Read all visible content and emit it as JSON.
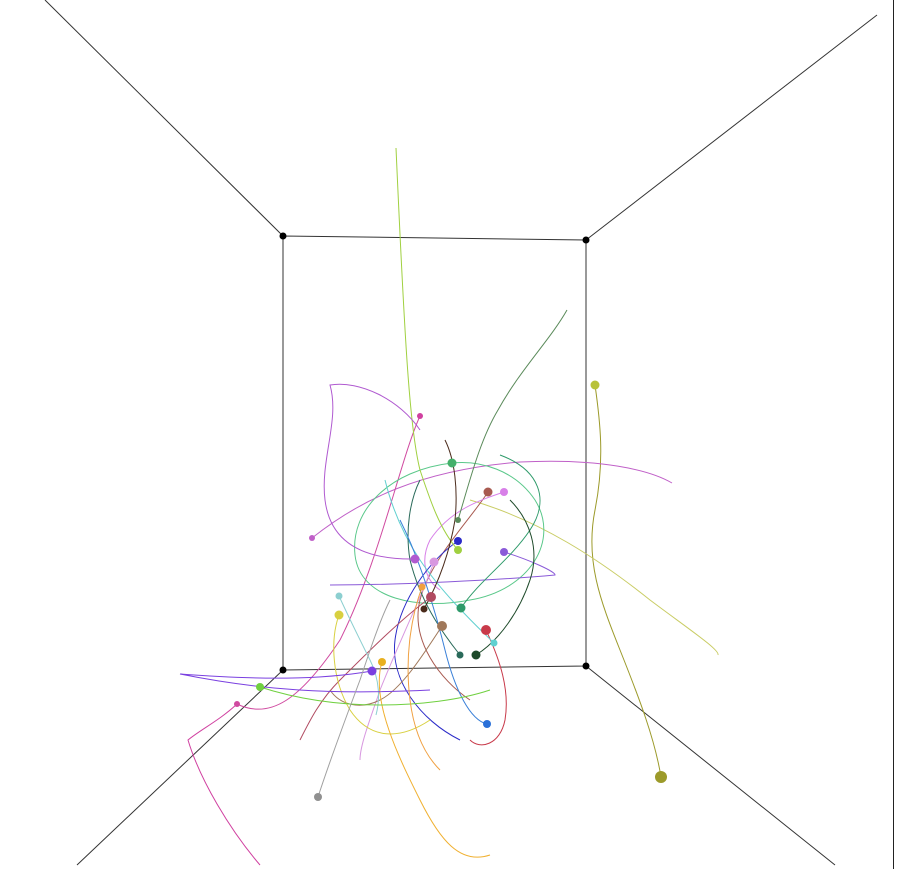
{
  "scene": {
    "type": "3d-particle-trajectory-simulation",
    "background": "#ffffff",
    "box_edge_color": "#333333",
    "corner_color": "#000000"
  },
  "particles": [
    {
      "color": "#9c9a2a",
      "trail": "#9c9a2a"
    },
    {
      "color": "#b8c23a",
      "trail": "#c9cc64"
    },
    {
      "color": "#c060c8",
      "trail": "#c060c8"
    },
    {
      "color": "#d04aa0",
      "trail": "#d04aa0"
    },
    {
      "color": "#44b06a",
      "trail": "#5ac88a"
    },
    {
      "color": "#a85a50",
      "trail": "#a85a50"
    },
    {
      "color": "#d880e8",
      "trail": "#d880e8"
    },
    {
      "color": "#2a2ac8",
      "trail": "#2a2ac8"
    },
    {
      "color": "#8a5ad8",
      "trail": "#8a5ad8"
    },
    {
      "color": "#a0d040",
      "trail": "#a0d040"
    },
    {
      "color": "#5a8a5a",
      "trail": "#5a8a5a"
    },
    {
      "color": "#d898e0",
      "trail": "#d898e0"
    },
    {
      "color": "#b04a60",
      "trail": "#b04a60"
    },
    {
      "color": "#2e9a6a",
      "trail": "#2e9a6a"
    },
    {
      "color": "#a0785a",
      "trail": "#a0785a"
    },
    {
      "color": "#c83a4a",
      "trail": "#c83a4a"
    },
    {
      "color": "#60d0d0",
      "trail": "#60d0d0"
    },
    {
      "color": "#2a6a5a",
      "trail": "#2a6a5a"
    },
    {
      "color": "#1e4a2a",
      "trail": "#1e4a2a"
    },
    {
      "color": "#2a70d8",
      "trail": "#3a80d8"
    },
    {
      "color": "#8ccfd0",
      "trail": "#8ccfd0"
    },
    {
      "color": "#d8d040",
      "trail": "#d8d040"
    },
    {
      "color": "#e8b020",
      "trail": "#f0b030"
    },
    {
      "color": "#7a40e0",
      "trail": "#7a40e0"
    },
    {
      "color": "#70d040",
      "trail": "#70d040"
    },
    {
      "color": "#d040a0",
      "trail": "#d040a0"
    },
    {
      "color": "#909090",
      "trail": "#a0a0a0"
    },
    {
      "color": "#4a2a1a",
      "trail": "#4a2a1a"
    },
    {
      "color": "#b05ad0",
      "trail": "#b05ad0"
    },
    {
      "color": "#f0a040",
      "trail": "#f0a040"
    }
  ]
}
